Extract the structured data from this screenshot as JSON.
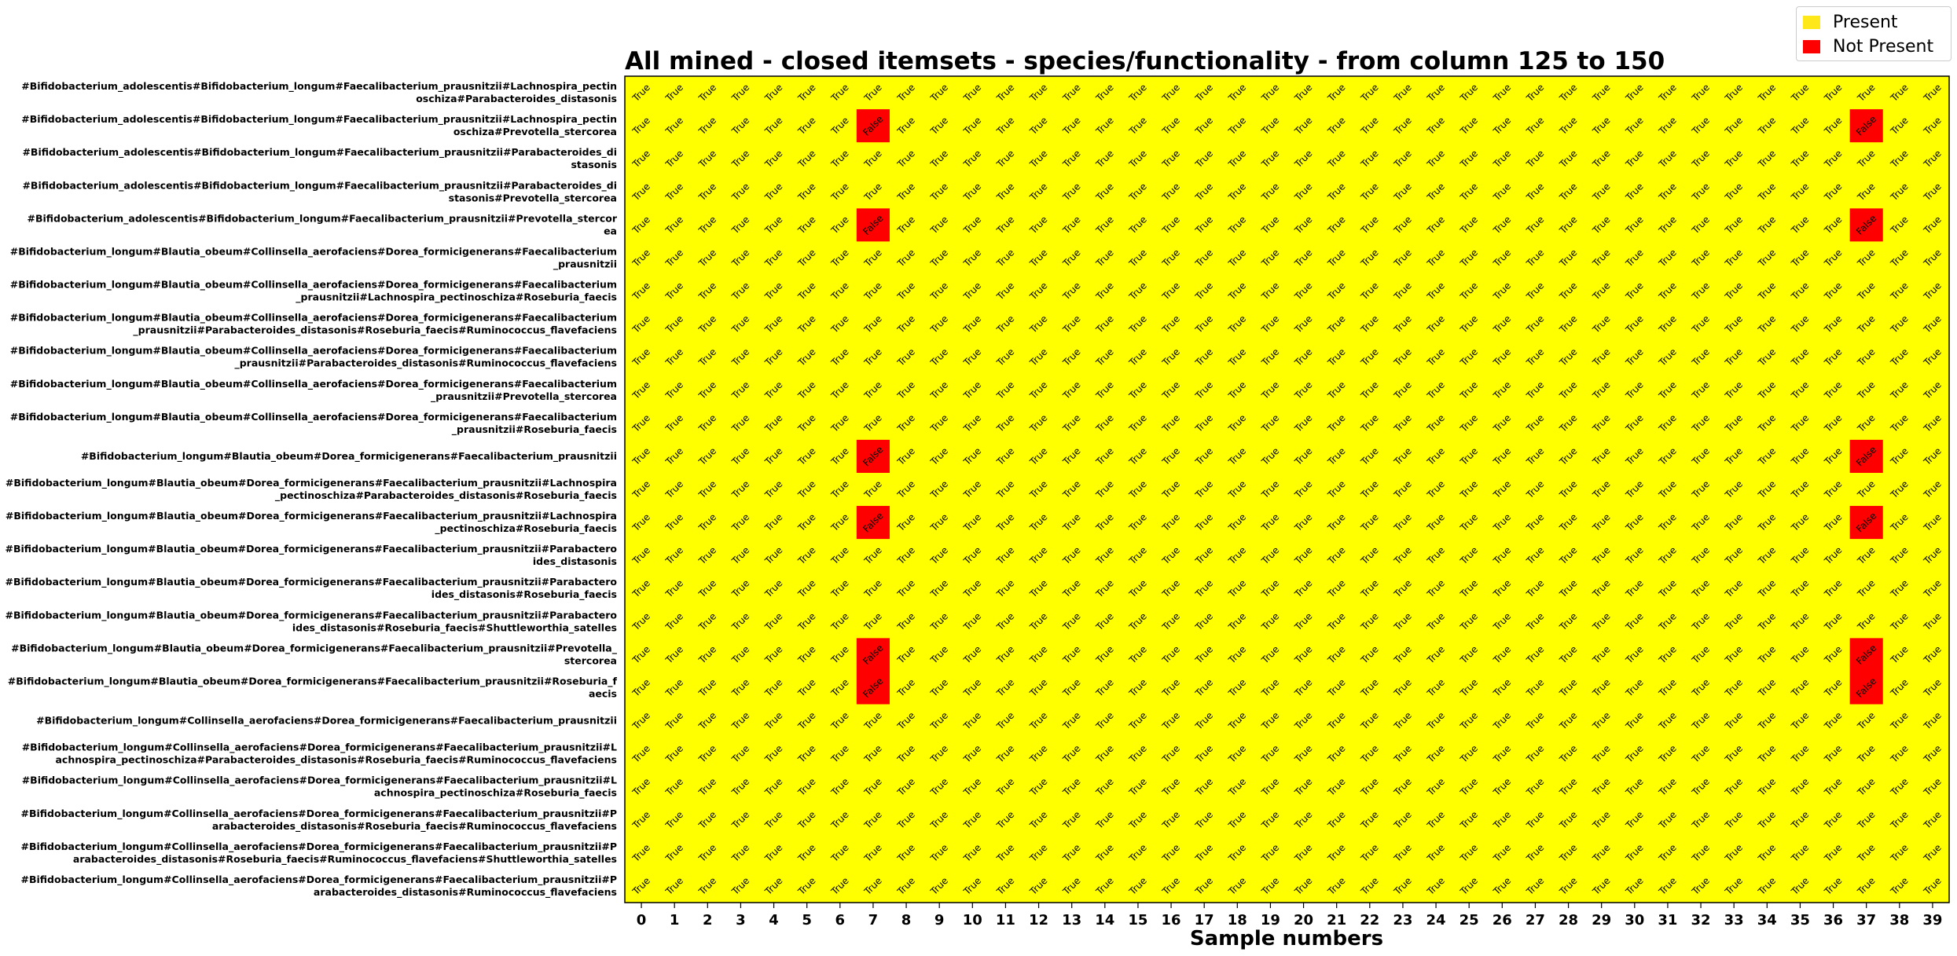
{
  "chart_data": {
    "type": "heatmap",
    "title": "All mined - closed itemsets - species/functionality - from column 125 to 150",
    "xlabel": "Sample numbers",
    "ylabel": "",
    "x_categories": [
      0,
      1,
      2,
      3,
      4,
      5,
      6,
      7,
      8,
      9,
      10,
      11,
      12,
      13,
      14,
      15,
      16,
      17,
      18,
      19,
      20,
      21,
      22,
      23,
      24,
      25,
      26,
      27,
      28,
      29,
      30,
      31,
      32,
      33,
      34,
      35,
      36,
      37,
      38,
      39
    ],
    "y_categories": [
      [
        "#Bifidobacterium_adolescentis#Bifidobacterium_longum#Faecalibacterium_prausnitzii#Lachnospira_pectin",
        "oschiza#Parabacteroides_distasonis"
      ],
      [
        "#Bifidobacterium_adolescentis#Bifidobacterium_longum#Faecalibacterium_prausnitzii#Lachnospira_pectin",
        "oschiza#Prevotella_stercorea"
      ],
      [
        "#Bifidobacterium_adolescentis#Bifidobacterium_longum#Faecalibacterium_prausnitzii#Parabacteroides_di",
        "stasonis"
      ],
      [
        "#Bifidobacterium_adolescentis#Bifidobacterium_longum#Faecalibacterium_prausnitzii#Parabacteroides_di",
        "stasonis#Prevotella_stercorea"
      ],
      [
        "#Bifidobacterium_adolescentis#Bifidobacterium_longum#Faecalibacterium_prausnitzii#Prevotella_stercor",
        "ea"
      ],
      [
        "#Bifidobacterium_longum#Blautia_obeum#Collinsella_aerofaciens#Dorea_formicigenerans#Faecalibacterium",
        "_prausnitzii"
      ],
      [
        "#Bifidobacterium_longum#Blautia_obeum#Collinsella_aerofaciens#Dorea_formicigenerans#Faecalibacterium",
        "_prausnitzii#Lachnospira_pectinoschiza#Roseburia_faecis"
      ],
      [
        "#Bifidobacterium_longum#Blautia_obeum#Collinsella_aerofaciens#Dorea_formicigenerans#Faecalibacterium",
        "_prausnitzii#Parabacteroides_distasonis#Roseburia_faecis#Ruminococcus_flavefaciens"
      ],
      [
        "#Bifidobacterium_longum#Blautia_obeum#Collinsella_aerofaciens#Dorea_formicigenerans#Faecalibacterium",
        "_prausnitzii#Parabacteroides_distasonis#Ruminococcus_flavefaciens"
      ],
      [
        "#Bifidobacterium_longum#Blautia_obeum#Collinsella_aerofaciens#Dorea_formicigenerans#Faecalibacterium",
        "_prausnitzii#Prevotella_stercorea"
      ],
      [
        "#Bifidobacterium_longum#Blautia_obeum#Collinsella_aerofaciens#Dorea_formicigenerans#Faecalibacterium",
        "_prausnitzii#Roseburia_faecis"
      ],
      [
        "#Bifidobacterium_longum#Blautia_obeum#Dorea_formicigenerans#Faecalibacterium_prausnitzii"
      ],
      [
        "#Bifidobacterium_longum#Blautia_obeum#Dorea_formicigenerans#Faecalibacterium_prausnitzii#Lachnospira",
        "_pectinoschiza#Parabacteroides_distasonis#Roseburia_faecis"
      ],
      [
        "#Bifidobacterium_longum#Blautia_obeum#Dorea_formicigenerans#Faecalibacterium_prausnitzii#Lachnospira",
        "_pectinoschiza#Roseburia_faecis"
      ],
      [
        "#Bifidobacterium_longum#Blautia_obeum#Dorea_formicigenerans#Faecalibacterium_prausnitzii#Parabactero",
        "ides_distasonis"
      ],
      [
        "#Bifidobacterium_longum#Blautia_obeum#Dorea_formicigenerans#Faecalibacterium_prausnitzii#Parabactero",
        "ides_distasonis#Roseburia_faecis"
      ],
      [
        "#Bifidobacterium_longum#Blautia_obeum#Dorea_formicigenerans#Faecalibacterium_prausnitzii#Parabactero",
        "ides_distasonis#Roseburia_faecis#Shuttleworthia_satelles"
      ],
      [
        "#Bifidobacterium_longum#Blautia_obeum#Dorea_formicigenerans#Faecalibacterium_prausnitzii#Prevotella_",
        "stercorea"
      ],
      [
        "#Bifidobacterium_longum#Blautia_obeum#Dorea_formicigenerans#Faecalibacterium_prausnitzii#Roseburia_f",
        "aecis"
      ],
      [
        "#Bifidobacterium_longum#Collinsella_aerofaciens#Dorea_formicigenerans#Faecalibacterium_prausnitzii"
      ],
      [
        "#Bifidobacterium_longum#Collinsella_aerofaciens#Dorea_formicigenerans#Faecalibacterium_prausnitzii#L",
        "achnospira_pectinoschiza#Parabacteroides_distasonis#Roseburia_faecis#Ruminococcus_flavefaciens"
      ],
      [
        "#Bifidobacterium_longum#Collinsella_aerofaciens#Dorea_formicigenerans#Faecalibacterium_prausnitzii#L",
        "achnospira_pectinoschiza#Roseburia_faecis"
      ],
      [
        "#Bifidobacterium_longum#Collinsella_aerofaciens#Dorea_formicigenerans#Faecalibacterium_prausnitzii#P",
        "arabacteroides_distasonis#Roseburia_faecis#Ruminococcus_flavefaciens"
      ],
      [
        "#Bifidobacterium_longum#Collinsella_aerofaciens#Dorea_formicigenerans#Faecalibacterium_prausnitzii#P",
        "arabacteroides_distasonis#Roseburia_faecis#Ruminococcus_flavefaciens#Shuttleworthia_satelles"
      ],
      [
        "#Bifidobacterium_longum#Collinsella_aerofaciens#Dorea_formicigenerans#Faecalibacterium_prausnitzii#P",
        "arabacteroides_distasonis#Ruminococcus_flavefaciens"
      ]
    ],
    "default_value": "True",
    "cell_labels": {
      "true": "True",
      "false": "False"
    },
    "false_cells": [
      [
        1,
        7
      ],
      [
        1,
        37
      ],
      [
        4,
        7
      ],
      [
        4,
        37
      ],
      [
        11,
        7
      ],
      [
        11,
        37
      ],
      [
        13,
        7
      ],
      [
        13,
        37
      ],
      [
        17,
        7
      ],
      [
        17,
        37
      ],
      [
        18,
        7
      ],
      [
        18,
        37
      ]
    ],
    "colors": {
      "present": "#ffff00",
      "not_present": "#ff0000"
    },
    "legend": {
      "placement": "top-right",
      "entries": [
        {
          "label": "Present",
          "color": "#ffe81a"
        },
        {
          "label": "Not Present",
          "color": "#ff0000"
        }
      ]
    },
    "grid": false
  }
}
